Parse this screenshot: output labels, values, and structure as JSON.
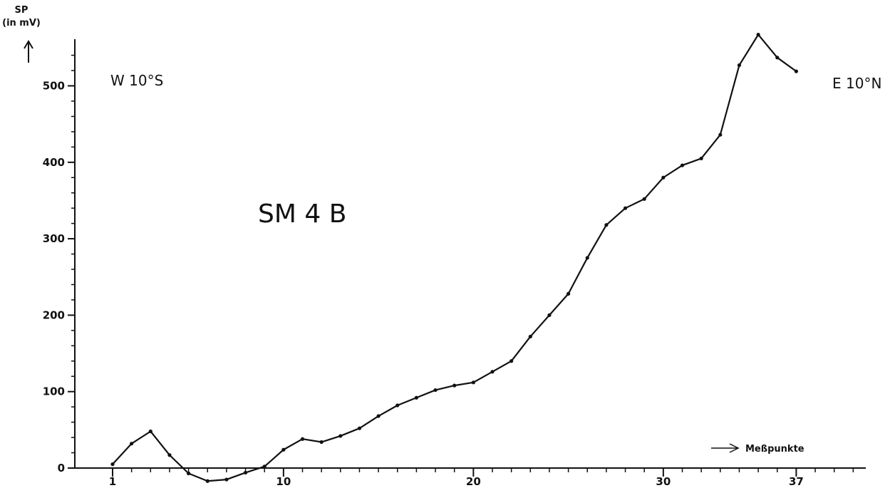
{
  "chart_data": {
    "type": "line",
    "title": "SM 4 B",
    "ylabel_top": "SP",
    "ylabel_bottom": "(in mV)",
    "xlabel": "Meßpunkte",
    "left_annotation": "W 10°S",
    "right_annotation": "E 10°N",
    "x_tick_labels": [
      "1",
      "10",
      "20",
      "30",
      "37"
    ],
    "x_tick_values": [
      1,
      10,
      20,
      30,
      37
    ],
    "y_tick_labels": [
      "0",
      "100",
      "200",
      "300",
      "400",
      "500"
    ],
    "y_tick_values": [
      0,
      100,
      200,
      300,
      400,
      500
    ],
    "xlim": [
      -0.5,
      40.7
    ],
    "ylim": [
      -15,
      560
    ],
    "grid": false,
    "series": [
      {
        "x": [
          1,
          2,
          3,
          4,
          5,
          6,
          7,
          8,
          9,
          10,
          11,
          12,
          13,
          14,
          15,
          16,
          17,
          18,
          19,
          20,
          21,
          22,
          23,
          24,
          25,
          26,
          27,
          28,
          29,
          30,
          31,
          32,
          33,
          34,
          35,
          36,
          37
        ],
        "values": [
          5,
          32,
          48,
          17,
          -7,
          -17,
          -15,
          -6,
          2,
          24,
          38,
          34,
          42,
          52,
          68,
          82,
          92,
          102,
          108,
          112,
          126,
          140,
          172,
          200,
          228,
          275,
          318,
          340,
          352,
          380,
          396,
          405,
          436,
          527,
          567,
          537,
          519
        ]
      }
    ],
    "line_color": "#111111"
  }
}
